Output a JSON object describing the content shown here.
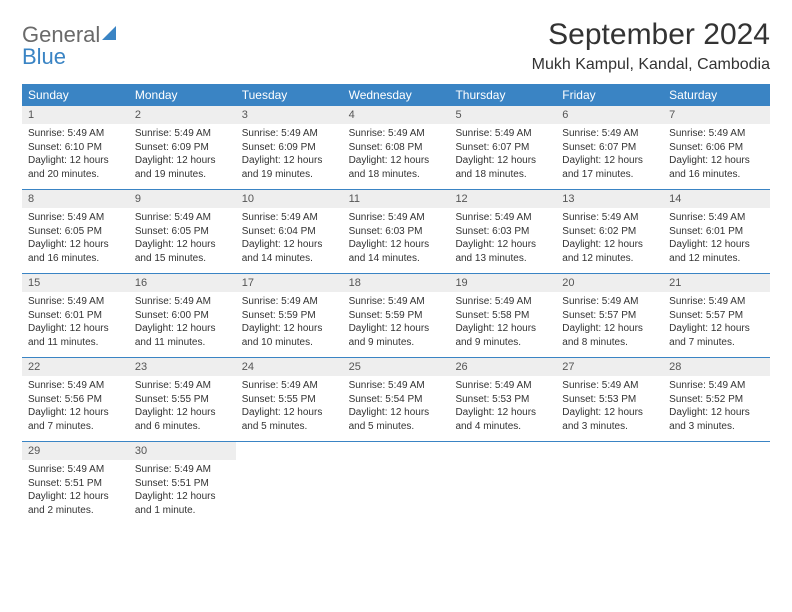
{
  "logo": {
    "word1": "General",
    "word2": "Blue"
  },
  "title": "September 2024",
  "location": "Mukh Kampul, Kandal, Cambodia",
  "day_names": [
    "Sunday",
    "Monday",
    "Tuesday",
    "Wednesday",
    "Thursday",
    "Friday",
    "Saturday"
  ],
  "colors": {
    "header_bg": "#3a84c4",
    "header_text": "#ffffff",
    "daynum_bg": "#eeeeee",
    "text": "#333333",
    "logo_gray": "#6a6a6a",
    "logo_blue": "#3a84c4",
    "week_divider": "#3a84c4"
  },
  "weeks": [
    [
      {
        "n": "1",
        "sr": "Sunrise: 5:49 AM",
        "ss": "Sunset: 6:10 PM",
        "d1": "Daylight: 12 hours",
        "d2": "and 20 minutes."
      },
      {
        "n": "2",
        "sr": "Sunrise: 5:49 AM",
        "ss": "Sunset: 6:09 PM",
        "d1": "Daylight: 12 hours",
        "d2": "and 19 minutes."
      },
      {
        "n": "3",
        "sr": "Sunrise: 5:49 AM",
        "ss": "Sunset: 6:09 PM",
        "d1": "Daylight: 12 hours",
        "d2": "and 19 minutes."
      },
      {
        "n": "4",
        "sr": "Sunrise: 5:49 AM",
        "ss": "Sunset: 6:08 PM",
        "d1": "Daylight: 12 hours",
        "d2": "and 18 minutes."
      },
      {
        "n": "5",
        "sr": "Sunrise: 5:49 AM",
        "ss": "Sunset: 6:07 PM",
        "d1": "Daylight: 12 hours",
        "d2": "and 18 minutes."
      },
      {
        "n": "6",
        "sr": "Sunrise: 5:49 AM",
        "ss": "Sunset: 6:07 PM",
        "d1": "Daylight: 12 hours",
        "d2": "and 17 minutes."
      },
      {
        "n": "7",
        "sr": "Sunrise: 5:49 AM",
        "ss": "Sunset: 6:06 PM",
        "d1": "Daylight: 12 hours",
        "d2": "and 16 minutes."
      }
    ],
    [
      {
        "n": "8",
        "sr": "Sunrise: 5:49 AM",
        "ss": "Sunset: 6:05 PM",
        "d1": "Daylight: 12 hours",
        "d2": "and 16 minutes."
      },
      {
        "n": "9",
        "sr": "Sunrise: 5:49 AM",
        "ss": "Sunset: 6:05 PM",
        "d1": "Daylight: 12 hours",
        "d2": "and 15 minutes."
      },
      {
        "n": "10",
        "sr": "Sunrise: 5:49 AM",
        "ss": "Sunset: 6:04 PM",
        "d1": "Daylight: 12 hours",
        "d2": "and 14 minutes."
      },
      {
        "n": "11",
        "sr": "Sunrise: 5:49 AM",
        "ss": "Sunset: 6:03 PM",
        "d1": "Daylight: 12 hours",
        "d2": "and 14 minutes."
      },
      {
        "n": "12",
        "sr": "Sunrise: 5:49 AM",
        "ss": "Sunset: 6:03 PM",
        "d1": "Daylight: 12 hours",
        "d2": "and 13 minutes."
      },
      {
        "n": "13",
        "sr": "Sunrise: 5:49 AM",
        "ss": "Sunset: 6:02 PM",
        "d1": "Daylight: 12 hours",
        "d2": "and 12 minutes."
      },
      {
        "n": "14",
        "sr": "Sunrise: 5:49 AM",
        "ss": "Sunset: 6:01 PM",
        "d1": "Daylight: 12 hours",
        "d2": "and 12 minutes."
      }
    ],
    [
      {
        "n": "15",
        "sr": "Sunrise: 5:49 AM",
        "ss": "Sunset: 6:01 PM",
        "d1": "Daylight: 12 hours",
        "d2": "and 11 minutes."
      },
      {
        "n": "16",
        "sr": "Sunrise: 5:49 AM",
        "ss": "Sunset: 6:00 PM",
        "d1": "Daylight: 12 hours",
        "d2": "and 11 minutes."
      },
      {
        "n": "17",
        "sr": "Sunrise: 5:49 AM",
        "ss": "Sunset: 5:59 PM",
        "d1": "Daylight: 12 hours",
        "d2": "and 10 minutes."
      },
      {
        "n": "18",
        "sr": "Sunrise: 5:49 AM",
        "ss": "Sunset: 5:59 PM",
        "d1": "Daylight: 12 hours",
        "d2": "and 9 minutes."
      },
      {
        "n": "19",
        "sr": "Sunrise: 5:49 AM",
        "ss": "Sunset: 5:58 PM",
        "d1": "Daylight: 12 hours",
        "d2": "and 9 minutes."
      },
      {
        "n": "20",
        "sr": "Sunrise: 5:49 AM",
        "ss": "Sunset: 5:57 PM",
        "d1": "Daylight: 12 hours",
        "d2": "and 8 minutes."
      },
      {
        "n": "21",
        "sr": "Sunrise: 5:49 AM",
        "ss": "Sunset: 5:57 PM",
        "d1": "Daylight: 12 hours",
        "d2": "and 7 minutes."
      }
    ],
    [
      {
        "n": "22",
        "sr": "Sunrise: 5:49 AM",
        "ss": "Sunset: 5:56 PM",
        "d1": "Daylight: 12 hours",
        "d2": "and 7 minutes."
      },
      {
        "n": "23",
        "sr": "Sunrise: 5:49 AM",
        "ss": "Sunset: 5:55 PM",
        "d1": "Daylight: 12 hours",
        "d2": "and 6 minutes."
      },
      {
        "n": "24",
        "sr": "Sunrise: 5:49 AM",
        "ss": "Sunset: 5:55 PM",
        "d1": "Daylight: 12 hours",
        "d2": "and 5 minutes."
      },
      {
        "n": "25",
        "sr": "Sunrise: 5:49 AM",
        "ss": "Sunset: 5:54 PM",
        "d1": "Daylight: 12 hours",
        "d2": "and 5 minutes."
      },
      {
        "n": "26",
        "sr": "Sunrise: 5:49 AM",
        "ss": "Sunset: 5:53 PM",
        "d1": "Daylight: 12 hours",
        "d2": "and 4 minutes."
      },
      {
        "n": "27",
        "sr": "Sunrise: 5:49 AM",
        "ss": "Sunset: 5:53 PM",
        "d1": "Daylight: 12 hours",
        "d2": "and 3 minutes."
      },
      {
        "n": "28",
        "sr": "Sunrise: 5:49 AM",
        "ss": "Sunset: 5:52 PM",
        "d1": "Daylight: 12 hours",
        "d2": "and 3 minutes."
      }
    ],
    [
      {
        "n": "29",
        "sr": "Sunrise: 5:49 AM",
        "ss": "Sunset: 5:51 PM",
        "d1": "Daylight: 12 hours",
        "d2": "and 2 minutes."
      },
      {
        "n": "30",
        "sr": "Sunrise: 5:49 AM",
        "ss": "Sunset: 5:51 PM",
        "d1": "Daylight: 12 hours",
        "d2": "and 1 minute."
      },
      {
        "empty": true
      },
      {
        "empty": true
      },
      {
        "empty": true
      },
      {
        "empty": true
      },
      {
        "empty": true
      }
    ]
  ]
}
